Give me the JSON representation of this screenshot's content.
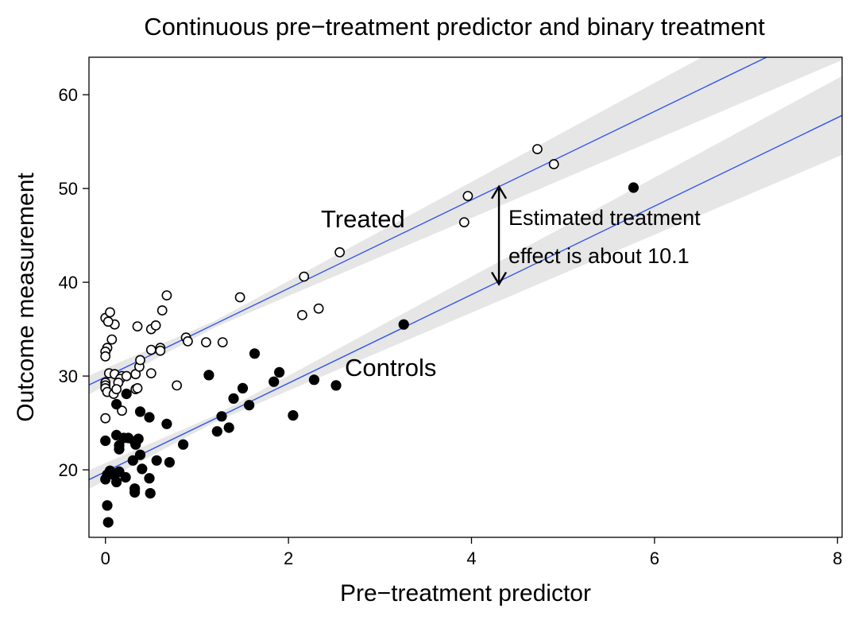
{
  "chart_data": {
    "type": "scatter",
    "title": "Continuous pre−treatment predictor and binary treatment",
    "xlabel": "Pre−treatment predictor",
    "ylabel": "Outcome measurement",
    "xlim": [
      -0.18,
      8.05
    ],
    "ylim": [
      12.8,
      64.0
    ],
    "xticks": [
      0,
      2,
      4,
      6,
      8
    ],
    "xtick_labels": [
      "0",
      "2",
      "4",
      "6",
      "8"
    ],
    "yticks": [
      20,
      30,
      40,
      50,
      60
    ],
    "ytick_labels": [
      "20",
      "30",
      "40",
      "50",
      "60"
    ],
    "colors": {
      "line": "#3355ee",
      "band": "#e6e6e6",
      "marker": "#000000"
    },
    "fit_lines": [
      {
        "name": "Treated",
        "intercept": 29.9,
        "slope": 4.72,
        "band_left": 1.0,
        "band_mid": 0.35,
        "band_right": 4.2,
        "band_center": 1.2
      },
      {
        "name": "Controls",
        "intercept": 19.8,
        "slope": 4.72,
        "band_left": 1.0,
        "band_mid": 0.35,
        "band_right": 4.2,
        "band_center": 1.2
      }
    ],
    "series": [
      {
        "name": "Treated",
        "marker": "open-circle",
        "points": [
          [
            0.0,
            36.2
          ],
          [
            0.05,
            36.8
          ],
          [
            0.1,
            35.5
          ],
          [
            0.03,
            35.8
          ],
          [
            0.07,
            33.9
          ],
          [
            0.02,
            33.0
          ],
          [
            0.0,
            32.6
          ],
          [
            0.0,
            32.1
          ],
          [
            0.04,
            30.3
          ],
          [
            0.1,
            30.2
          ],
          [
            0.18,
            30.0
          ],
          [
            0.16,
            29.7
          ],
          [
            0.23,
            30.0
          ],
          [
            0.0,
            29.3
          ],
          [
            0.0,
            29.0
          ],
          [
            0.0,
            28.7
          ],
          [
            0.02,
            28.3
          ],
          [
            0.09,
            28.1
          ],
          [
            0.14,
            29.3
          ],
          [
            0.12,
            28.6
          ],
          [
            0.18,
            26.3
          ],
          [
            0.0,
            25.5
          ],
          [
            0.33,
            28.6
          ],
          [
            0.35,
            28.7
          ],
          [
            0.33,
            30.2
          ],
          [
            0.37,
            31.0
          ],
          [
            0.38,
            31.7
          ],
          [
            0.35,
            35.3
          ],
          [
            0.5,
            35.0
          ],
          [
            0.55,
            35.4
          ],
          [
            0.5,
            32.8
          ],
          [
            0.6,
            33.0
          ],
          [
            0.6,
            32.7
          ],
          [
            0.62,
            37.0
          ],
          [
            0.67,
            38.6
          ],
          [
            0.5,
            30.3
          ],
          [
            0.78,
            29.0
          ],
          [
            0.88,
            34.1
          ],
          [
            0.9,
            33.7
          ],
          [
            1.1,
            33.6
          ],
          [
            1.28,
            33.6
          ],
          [
            1.47,
            38.4
          ],
          [
            2.15,
            36.5
          ],
          [
            2.17,
            40.6
          ],
          [
            2.33,
            37.2
          ],
          [
            2.56,
            43.2
          ],
          [
            3.92,
            46.4
          ],
          [
            3.96,
            49.2
          ],
          [
            4.72,
            54.2
          ],
          [
            4.9,
            52.6
          ]
        ]
      },
      {
        "name": "Controls",
        "marker": "filled-circle",
        "points": [
          [
            0.03,
            14.4
          ],
          [
            0.02,
            16.2
          ],
          [
            0.0,
            19.0
          ],
          [
            0.02,
            19.5
          ],
          [
            0.05,
            19.9
          ],
          [
            0.0,
            23.1
          ],
          [
            0.12,
            18.7
          ],
          [
            0.1,
            19.4
          ],
          [
            0.15,
            19.8
          ],
          [
            0.22,
            19.2
          ],
          [
            0.15,
            22.2
          ],
          [
            0.15,
            22.6
          ],
          [
            0.12,
            23.7
          ],
          [
            0.2,
            23.4
          ],
          [
            0.25,
            23.4
          ],
          [
            0.32,
            23.0
          ],
          [
            0.36,
            23.3
          ],
          [
            0.33,
            22.7
          ],
          [
            0.38,
            21.6
          ],
          [
            0.3,
            21.0
          ],
          [
            0.4,
            20.1
          ],
          [
            0.32,
            18.0
          ],
          [
            0.32,
            17.6
          ],
          [
            0.48,
            19.1
          ],
          [
            0.49,
            17.5
          ],
          [
            0.12,
            27.0
          ],
          [
            0.23,
            28.1
          ],
          [
            0.38,
            26.2
          ],
          [
            0.48,
            25.6
          ],
          [
            0.56,
            21.0
          ],
          [
            0.67,
            24.9
          ],
          [
            0.7,
            20.8
          ],
          [
            0.85,
            22.7
          ],
          [
            1.13,
            30.1
          ],
          [
            1.22,
            24.1
          ],
          [
            1.27,
            25.7
          ],
          [
            1.35,
            24.5
          ],
          [
            1.4,
            27.6
          ],
          [
            1.5,
            28.7
          ],
          [
            1.57,
            26.9
          ],
          [
            1.63,
            32.4
          ],
          [
            1.84,
            29.4
          ],
          [
            1.9,
            30.4
          ],
          [
            2.05,
            25.8
          ],
          [
            2.28,
            29.6
          ],
          [
            2.52,
            29.0
          ],
          [
            3.26,
            35.5
          ],
          [
            5.77,
            50.1
          ]
        ]
      }
    ],
    "annotations": {
      "treated_label": "Treated",
      "controls_label": "Controls",
      "effect_line1": "Estimated treatment",
      "effect_line2": "effect is about 10.1",
      "arrow": {
        "x": 4.3,
        "y_from": 39.8,
        "y_to": 50.2
      }
    }
  }
}
